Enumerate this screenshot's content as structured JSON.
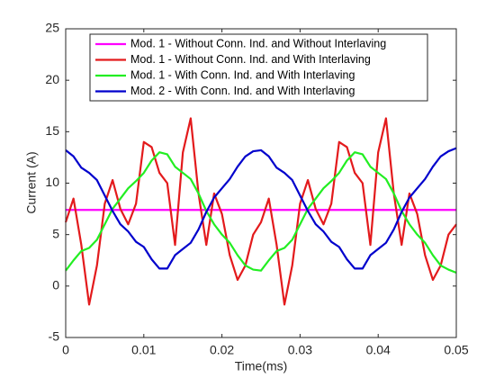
{
  "chart_data": {
    "type": "line",
    "xlabel": "Time(ms)",
    "ylabel": "Current (A)",
    "x": [
      0,
      0.001,
      0.002,
      0.003,
      0.004,
      0.005,
      0.006,
      0.007,
      0.008,
      0.009,
      0.01,
      0.011,
      0.012,
      0.013,
      0.014,
      0.015,
      0.016,
      0.017,
      0.018,
      0.019,
      0.02,
      0.021,
      0.022,
      0.023,
      0.024,
      0.025,
      0.026,
      0.027,
      0.028,
      0.029,
      0.03,
      0.031,
      0.032,
      0.033,
      0.034,
      0.035,
      0.036,
      0.037,
      0.038,
      0.039,
      0.04,
      0.041,
      0.042,
      0.043,
      0.044,
      0.045,
      0.046,
      0.047,
      0.048,
      0.049,
      0.05
    ],
    "series": [
      {
        "name": "Mod. 1 - Without Conn. Ind. and Without Interlaving",
        "color": "#ff00ff",
        "values": [
          7.4,
          7.4,
          7.4,
          7.4,
          7.4,
          7.4,
          7.4,
          7.4,
          7.4,
          7.4,
          7.4,
          7.4,
          7.4,
          7.4,
          7.4,
          7.4,
          7.4,
          7.4,
          7.4,
          7.4,
          7.4,
          7.4,
          7.4,
          7.4,
          7.4,
          7.4,
          7.4,
          7.4,
          7.4,
          7.4,
          7.4,
          7.4,
          7.4,
          7.4,
          7.4,
          7.4,
          7.4,
          7.4,
          7.4,
          7.4,
          7.4,
          7.4,
          7.4,
          7.4,
          7.4,
          7.4,
          7.4,
          7.4,
          7.4,
          7.4,
          7.4
        ]
      },
      {
        "name": "Mod. 1 - Without Conn. Ind. and With Interlaving",
        "color": "#e31a1c",
        "values": [
          6.2,
          8.5,
          4,
          -1.8,
          2,
          8,
          10.3,
          7.5,
          6,
          8,
          14,
          13.5,
          11,
          10,
          4,
          13,
          16.3,
          9,
          4,
          9,
          7,
          3,
          0.6,
          2,
          5,
          6.2,
          8.5,
          4,
          -1.8,
          2,
          8,
          10.3,
          7.5,
          6,
          8,
          14,
          13.5,
          11,
          10,
          4,
          13,
          16.3,
          9,
          4,
          9,
          7,
          3,
          0.6,
          2,
          5,
          6
        ]
      },
      {
        "name": "Mod. 1 - With Conn. Ind. and With Interlaving",
        "color": "#22ee22",
        "values": [
          1.5,
          2.5,
          3.4,
          3.7,
          4.5,
          6,
          7.5,
          8.5,
          9.5,
          10.2,
          11,
          12.2,
          13,
          12.8,
          11.6,
          11,
          10.4,
          9,
          7.3,
          6,
          5,
          4.2,
          3,
          2,
          1.6,
          1.5,
          2.5,
          3.4,
          3.7,
          4.5,
          6,
          7.5,
          8.5,
          9.5,
          10.2,
          11,
          12.2,
          13,
          12.8,
          11.6,
          11,
          10.4,
          9,
          7.3,
          6,
          5,
          4.2,
          3,
          2,
          1.6,
          1.3
        ]
      },
      {
        "name": "Mod. 2 - With Conn. Ind. and With Interlaving",
        "color": "#0000cc",
        "values": [
          13.2,
          12.6,
          11.5,
          11,
          10.3,
          8.8,
          7.3,
          6,
          5.3,
          4.3,
          3.8,
          2.6,
          1.7,
          1.7,
          3,
          3.6,
          4.2,
          5.5,
          7.2,
          8.6,
          9.5,
          10.4,
          11.6,
          12.6,
          13.1,
          13.2,
          12.6,
          11.5,
          11,
          10.3,
          8.8,
          7.3,
          6,
          5.3,
          4.3,
          3.8,
          2.6,
          1.7,
          1.7,
          3,
          3.6,
          4.2,
          5.5,
          7.2,
          8.6,
          9.5,
          10.4,
          11.6,
          12.6,
          13.1,
          13.4
        ]
      }
    ],
    "xlim": [
      0,
      0.05
    ],
    "xticks": [
      0,
      0.01,
      0.02,
      0.03,
      0.04,
      0.05
    ],
    "ylim": [
      -5,
      25
    ],
    "yticks": [
      -5,
      0,
      5,
      10,
      15,
      20,
      25
    ],
    "grid": false,
    "legend": "top"
  }
}
